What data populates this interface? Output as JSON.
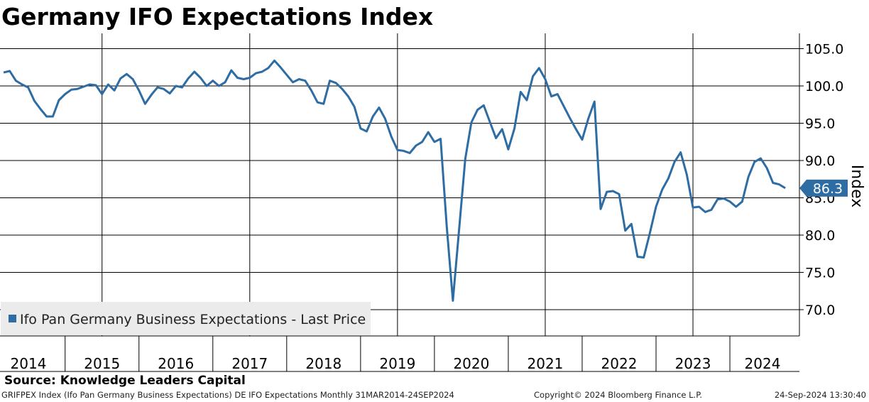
{
  "title": "Germany IFO Expectations Index",
  "source": "Source: Knowledge Leaders Capital",
  "footer": {
    "left": "GRIFPEX Index (Ifo Pan Germany Business Expectations) DE IFO Expectations  Monthly 31MAR2014-24SEP2024",
    "middle": "Copyright© 2024 Bloomberg Finance L.P.",
    "right": "24-Sep-2024 13:30:40"
  },
  "colors": {
    "line": "#2e6ca4",
    "grid": "#000000",
    "legend_bg": "#ebebeb"
  },
  "chart_data": {
    "type": "line",
    "title": "Germany IFO Expectations Index",
    "ylabel": "Index",
    "xlabel": "",
    "ylim": [
      66.5,
      107.5
    ],
    "yticks": [
      70,
      75,
      80,
      85,
      90,
      95,
      100,
      105
    ],
    "ytick_labels": [
      "70.0",
      "75.0",
      "80.0",
      "85.0",
      "90.0",
      "95.0",
      "100.0",
      "105.0"
    ],
    "xtick_labels": [
      "2014",
      "2015",
      "2016",
      "2017",
      "2018",
      "2019",
      "2020",
      "2021",
      "2022",
      "2023",
      "2024"
    ],
    "grid": true,
    "legend_position": "bottom-left",
    "last_value_label": "86.3",
    "series": [
      {
        "name": "Ifo Pan Germany Business Expectations - Last Price",
        "start": "2014-03",
        "frequency": "monthly",
        "values": [
          101.8,
          102.0,
          100.7,
          100.2,
          99.8,
          98.0,
          96.9,
          95.9,
          95.9,
          98.1,
          98.9,
          99.5,
          99.6,
          99.9,
          100.2,
          100.1,
          98.9,
          100.2,
          99.4,
          101.0,
          101.6,
          100.9,
          99.4,
          97.6,
          98.8,
          99.8,
          99.6,
          99.0,
          100.0,
          99.8,
          101.0,
          101.9,
          101.1,
          100.0,
          100.7,
          100.0,
          100.5,
          102.1,
          101.1,
          100.9,
          101.1,
          101.7,
          101.9,
          102.4,
          103.4,
          102.5,
          101.5,
          100.5,
          100.9,
          100.7,
          99.4,
          97.8,
          97.6,
          100.7,
          100.4,
          99.6,
          98.6,
          97.2,
          94.3,
          93.9,
          95.9,
          97.1,
          95.6,
          93.2,
          91.4,
          91.3,
          91.0,
          92.0,
          92.5,
          93.8,
          92.5,
          92.9,
          81.2,
          71.2,
          80.7,
          90.2,
          95.1,
          96.8,
          97.4,
          95.2,
          93.0,
          94.2,
          91.5,
          94.3,
          99.2,
          98.1,
          101.3,
          102.4,
          100.9,
          98.6,
          98.9,
          97.3,
          95.7,
          94.2,
          92.8,
          95.6,
          97.9,
          83.5,
          85.8,
          85.9,
          85.5,
          80.6,
          81.5,
          77.1,
          77.0,
          80.3,
          83.8,
          86.1,
          87.6,
          89.8,
          91.1,
          88.1,
          83.7,
          83.8,
          83.1,
          83.4,
          84.8,
          84.9,
          84.5,
          83.8,
          84.5,
          87.8,
          89.8,
          90.3,
          89.0,
          87.0,
          86.8,
          86.3
        ]
      }
    ]
  }
}
